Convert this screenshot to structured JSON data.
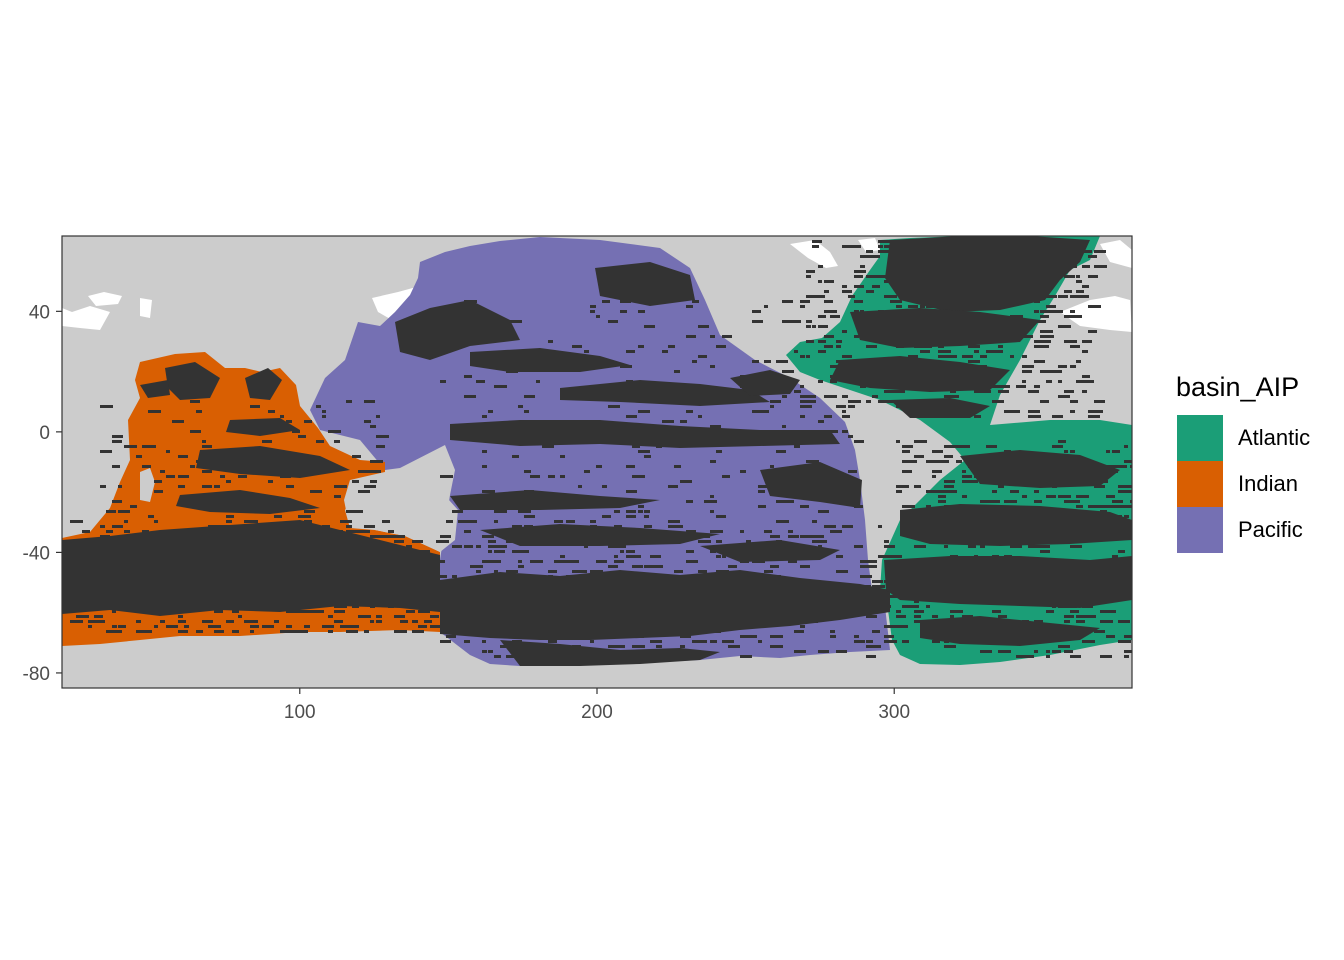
{
  "chart_data": {
    "type": "heatmap",
    "title": "",
    "xlabel": "",
    "ylabel": "",
    "xlim": [
      20,
      380
    ],
    "ylim": [
      -85,
      65
    ],
    "x_ticks": [
      100,
      200,
      300
    ],
    "y_ticks": [
      40,
      0,
      -40,
      -80
    ],
    "x_tick_labels": [
      "100",
      "200",
      "300"
    ],
    "y_tick_labels": [
      "40",
      "0",
      "-40",
      "-80"
    ],
    "grid": false,
    "panel_background": "#cccccc",
    "land_color": "#cccccc",
    "ice_color": "#ffffff",
    "no_data_color": "#333333",
    "legend": {
      "title": "basin_AIP",
      "placement": "right",
      "entries": [
        {
          "label": "Atlantic",
          "color": "#1b9e77"
        },
        {
          "label": "Indian",
          "color": "#d95f02"
        },
        {
          "label": "Pacific",
          "color": "#7570b3"
        }
      ]
    },
    "series": [
      {
        "name": "Atlantic",
        "color": "#1b9e77",
        "lon_range": [
          282,
          380
        ],
        "lat_range": [
          -78,
          65
        ]
      },
      {
        "name": "Indian",
        "color": "#d95f02",
        "lon_range": [
          20,
          148
        ],
        "lat_range": [
          -70,
          27
        ]
      },
      {
        "name": "Pacific",
        "color": "#7570b3",
        "lon_range": [
          100,
          292
        ],
        "lat_range": [
          -78,
          65
        ]
      }
    ]
  }
}
